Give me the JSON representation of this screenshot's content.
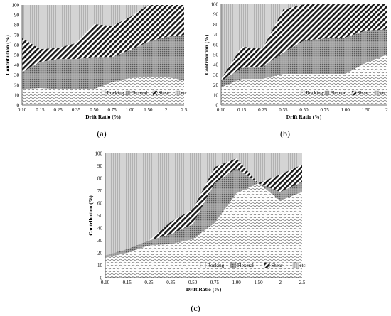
{
  "captions": [
    "(a)",
    "(b)",
    "(c)"
  ],
  "chart_data": [
    {
      "type": "area",
      "stacked": true,
      "caption": "(a)",
      "xlabel": "Drift Ratio (%)",
      "ylabel": "Contribution (%)",
      "x": [
        "0.10",
        "0.15",
        "0.25",
        "0.35",
        "0.50",
        "0.75",
        "1.00",
        "1.50",
        "2",
        "2.5"
      ],
      "ylim": [
        0,
        100
      ],
      "yticks": [
        0,
        10,
        20,
        30,
        40,
        50,
        60,
        70,
        80,
        90,
        100
      ],
      "legend": [
        "Rocking",
        "Flexeral",
        "Shear",
        "etc."
      ],
      "legend_position": "bottom-right",
      "series": [
        {
          "name": "Rocking",
          "values": [
            16,
            17,
            16,
            16,
            16,
            23,
            27,
            28,
            28,
            25
          ]
        },
        {
          "name": "Flexeral",
          "values": [
            17,
            26,
            30,
            30,
            32,
            25,
            28,
            35,
            40,
            45
          ]
        },
        {
          "name": "Shear",
          "values": [
            34,
            13,
            11,
            16,
            33,
            31,
            33,
            37,
            32,
            30
          ]
        },
        {
          "name": "etc.",
          "values": [
            33,
            44,
            43,
            38,
            19,
            21,
            12,
            0,
            0,
            0
          ]
        }
      ]
    },
    {
      "type": "area",
      "stacked": true,
      "caption": "(b)",
      "xlabel": "Drift Ratio (%)",
      "ylabel": "Contribution (%)",
      "x": [
        "0.10",
        "0.15",
        "0.25",
        "0.35",
        "0.50",
        "0.75",
        "1.00",
        "1.50",
        "2"
      ],
      "ylim": [
        0,
        100
      ],
      "yticks": [
        0,
        10,
        20,
        30,
        40,
        50,
        60,
        70,
        80,
        90,
        100
      ],
      "legend": [
        "Rocking",
        "Flexeral",
        "Shear",
        "etc."
      ],
      "legend_position": "bottom-right",
      "series": [
        {
          "name": "Rocking",
          "values": [
            18,
            26,
            26,
            31,
            31,
            31,
            31,
            42,
            50
          ]
        },
        {
          "name": "Flexeral",
          "values": [
            6,
            11,
            12,
            21,
            33,
            35,
            36,
            32,
            25
          ]
        },
        {
          "name": "Shear",
          "values": [
            2,
            21,
            18,
            43,
            36,
            34,
            33,
            26,
            25
          ]
        },
        {
          "name": "etc.",
          "values": [
            74,
            42,
            44,
            5,
            0,
            0,
            0,
            0,
            0
          ]
        }
      ]
    },
    {
      "type": "area",
      "stacked": true,
      "caption": "(c)",
      "xlabel": "Drift Ratio (%)",
      "ylabel": "Contribution (%)",
      "x": [
        "0.10",
        "0.15",
        "0.25",
        "0.35",
        "0.50",
        "0.75",
        "1.00",
        "1.50",
        "2",
        "2.5"
      ],
      "ylim": [
        0,
        100
      ],
      "yticks": [
        0,
        10,
        20,
        30,
        40,
        50,
        60,
        70,
        80,
        90,
        100
      ],
      "legend": [
        "Rocking",
        "Flexeral",
        "Shear",
        "etc."
      ],
      "legend_position": "bottom-right",
      "series": [
        {
          "name": "Rocking",
          "values": [
            16,
            20,
            26,
            27,
            31,
            44,
            68,
            76,
            62,
            69
          ]
        },
        {
          "name": "Flexeral",
          "values": [
            2,
            3,
            4,
            8,
            12,
            32,
            20,
            0,
            7,
            8
          ]
        },
        {
          "name": "Shear",
          "values": [
            0,
            0,
            0,
            10,
            12,
            13,
            8,
            0,
            14,
            14
          ]
        },
        {
          "name": "etc.",
          "values": [
            82,
            77,
            70,
            55,
            45,
            11,
            4,
            24,
            17,
            9
          ]
        }
      ]
    }
  ]
}
